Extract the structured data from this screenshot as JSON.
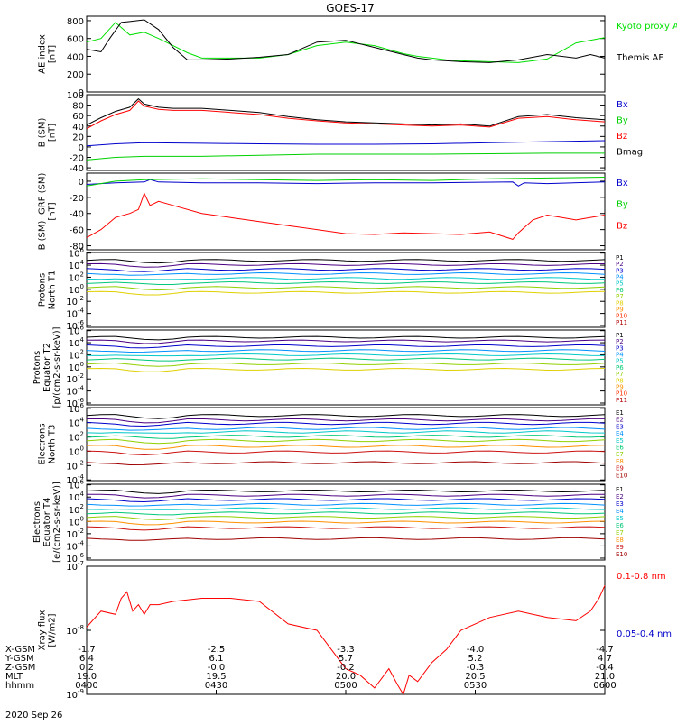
{
  "title": "GOES-17",
  "date": "2020 Sep 26",
  "chart_data": [
    {
      "type": "line",
      "panel": "ae",
      "ylabel": [
        "AE index",
        "[nT]"
      ],
      "yscale": "linear",
      "ylim": [
        0,
        850
      ],
      "yticks": [
        "0",
        "200",
        "400",
        "600",
        "800"
      ],
      "series": [
        {
          "name": "Kyoto proxy AE",
          "color": "#00e000",
          "x": [
            0,
            5,
            10,
            15,
            20,
            25,
            30,
            35,
            40,
            50,
            60,
            70,
            80,
            90,
            100,
            110,
            115,
            120,
            125,
            130,
            140,
            150,
            160,
            170,
            180
          ],
          "y": [
            560,
            600,
            780,
            640,
            670,
            600,
            520,
            440,
            380,
            380,
            380,
            420,
            520,
            560,
            520,
            430,
            400,
            380,
            360,
            350,
            340,
            330,
            370,
            550,
            610
          ]
        },
        {
          "name": "Themis AE",
          "color": "#000000",
          "x": [
            0,
            5,
            8,
            12,
            15,
            20,
            25,
            30,
            35,
            40,
            50,
            60,
            70,
            80,
            90,
            100,
            110,
            115,
            120,
            125,
            130,
            140,
            150,
            160,
            170,
            175,
            180
          ],
          "y": [
            480,
            450,
            600,
            780,
            790,
            810,
            700,
            500,
            360,
            360,
            370,
            390,
            420,
            560,
            580,
            500,
            420,
            380,
            360,
            350,
            340,
            330,
            360,
            420,
            380,
            420,
            380
          ]
        }
      ]
    },
    {
      "type": "line",
      "panel": "b",
      "ylabel": [
        "B (SM)",
        "[nT]"
      ],
      "yscale": "linear",
      "ylim": [
        -45,
        100
      ],
      "yticks": [
        "-40",
        "-20",
        "0",
        "20",
        "40",
        "60",
        "80",
        "100"
      ],
      "series": [
        {
          "name": "Bx",
          "color": "#0000cc",
          "x": [
            0,
            10,
            20,
            40,
            60,
            80,
            100,
            120,
            140,
            160,
            180
          ],
          "y": [
            2,
            6,
            8,
            7,
            6,
            5,
            5,
            6,
            8,
            10,
            12
          ]
        },
        {
          "name": "By",
          "color": "#00d000",
          "x": [
            0,
            10,
            20,
            40,
            60,
            80,
            100,
            120,
            140,
            160,
            180
          ],
          "y": [
            -25,
            -20,
            -18,
            -18,
            -16,
            -14,
            -14,
            -14,
            -13,
            -12,
            -12
          ]
        },
        {
          "name": "Bz",
          "color": "#ff0000",
          "x": [
            0,
            5,
            10,
            15,
            18,
            20,
            25,
            30,
            40,
            50,
            60,
            70,
            80,
            90,
            100,
            110,
            120,
            130,
            140,
            150,
            160,
            170,
            180
          ],
          "y": [
            35,
            50,
            62,
            70,
            88,
            78,
            72,
            70,
            70,
            66,
            62,
            55,
            50,
            46,
            44,
            42,
            40,
            42,
            38,
            55,
            58,
            52,
            48
          ]
        },
        {
          "name": "Bmag",
          "color": "#000000",
          "x": [
            0,
            5,
            10,
            15,
            18,
            20,
            25,
            30,
            40,
            50,
            60,
            70,
            80,
            90,
            100,
            110,
            120,
            130,
            140,
            150,
            160,
            170,
            180
          ],
          "y": [
            42,
            56,
            68,
            76,
            92,
            82,
            76,
            74,
            74,
            70,
            66,
            58,
            52,
            48,
            46,
            44,
            42,
            44,
            40,
            58,
            62,
            56,
            52
          ]
        }
      ]
    },
    {
      "type": "line",
      "panel": "bigrf",
      "ylabel": [
        "B (SM)-IGRF (SM)",
        "[nT]"
      ],
      "yscale": "linear",
      "ylim": [
        -85,
        10
      ],
      "yticks": [
        "-80",
        "-60",
        "-40",
        "-20",
        "0"
      ],
      "series": [
        {
          "name": "Bx",
          "color": "#0000cc",
          "x": [
            0,
            10,
            20,
            22,
            25,
            40,
            60,
            80,
            100,
            120,
            148,
            150,
            152,
            160,
            180
          ],
          "y": [
            -4,
            -2,
            -1,
            2,
            -1,
            -2,
            -2,
            -3,
            -2,
            -2,
            -1,
            -6,
            -2,
            -3,
            -1
          ]
        },
        {
          "name": "By",
          "color": "#00d000",
          "x": [
            0,
            10,
            20,
            40,
            60,
            80,
            100,
            120,
            140,
            160,
            180
          ],
          "y": [
            -6,
            0,
            2,
            3,
            2,
            1,
            2,
            1,
            3,
            4,
            5
          ]
        },
        {
          "name": "Bz",
          "color": "#ff0000",
          "x": [
            0,
            5,
            10,
            15,
            18,
            20,
            22,
            25,
            30,
            40,
            50,
            60,
            70,
            80,
            90,
            100,
            110,
            120,
            130,
            140,
            148,
            150,
            155,
            160,
            170,
            180
          ],
          "y": [
            -70,
            -60,
            -45,
            -40,
            -35,
            -15,
            -30,
            -25,
            -30,
            -40,
            -45,
            -50,
            -55,
            -60,
            -65,
            -66,
            -64,
            -65,
            -66,
            -63,
            -72,
            -64,
            -48,
            -42,
            -48,
            -42
          ]
        }
      ]
    },
    {
      "type": "line",
      "panel": "pnorth",
      "ylabel": [
        "Protons",
        "North T1"
      ],
      "yscale": "log",
      "ylim": [
        -6.3,
        6.1
      ],
      "yticks": [
        "10-6",
        "10-4",
        "10-2",
        "100",
        "102",
        "104",
        "106"
      ],
      "labels": [
        "P1",
        "P2",
        "P3",
        "P4",
        "P5",
        "P6",
        "P7",
        "P8",
        "P9",
        "P10",
        "P11"
      ],
      "colors": [
        "#000000",
        "#4b0082",
        "#0000cc",
        "#0090ff",
        "#00c8c8",
        "#00c878",
        "#90d000",
        "#e0d000",
        "#ff9000",
        "#ff3000",
        "#b00000"
      ],
      "levels": [
        4.8,
        4.1,
        3.3,
        2.6,
        1.8,
        1.1,
        0.3,
        -0.5,
        -9,
        -9,
        -9
      ]
    },
    {
      "type": "line",
      "panel": "peq",
      "ylabel": [
        "Protons",
        "Equator T2",
        "[p/(cm2-s-sr-keV)]"
      ],
      "yscale": "log",
      "ylim": [
        -6.3,
        6.1
      ],
      "yticks": [
        "10-6",
        "10-4",
        "10-2",
        "100",
        "102",
        "104",
        "106"
      ],
      "labels": [
        "P1",
        "P2",
        "P3",
        "P4",
        "P5",
        "P6",
        "P7",
        "P8",
        "P9",
        "P10",
        "P11"
      ],
      "colors": [
        "#000000",
        "#4b0082",
        "#0000cc",
        "#0090ff",
        "#00c8c8",
        "#00c878",
        "#90d000",
        "#e0d000",
        "#ff9000",
        "#ff3000",
        "#b00000"
      ],
      "levels": [
        4.9,
        4.3,
        3.5,
        2.7,
        2.0,
        1.3,
        0.5,
        -0.4,
        -9,
        -9,
        -9
      ]
    },
    {
      "type": "line",
      "panel": "enorth",
      "ylabel": [
        "Electrons",
        "North T3"
      ],
      "yscale": "log",
      "ylim": [
        -4.1,
        6.1
      ],
      "yticks": [
        "10-4",
        "10-2",
        "100",
        "102",
        "104",
        "106"
      ],
      "labels": [
        "E1",
        "E2",
        "E3",
        "E4",
        "E5",
        "E6",
        "E7",
        "E8",
        "E9",
        "E10"
      ],
      "colors": [
        "#000000",
        "#4b0082",
        "#0000cc",
        "#0090ff",
        "#00c8c8",
        "#00c878",
        "#90d000",
        "#ff9000",
        "#cc1010",
        "#a00000"
      ],
      "levels": [
        5.0,
        4.4,
        3.9,
        3.2,
        2.7,
        2.1,
        1.5,
        0.7,
        -0.1,
        -1.6
      ]
    },
    {
      "type": "line",
      "panel": "eeq",
      "ylabel": [
        "Electrons",
        "Equator T4",
        "[e/(cm2-s-sr-keV)]"
      ],
      "yscale": "log",
      "ylim": [
        -6.3,
        6.1
      ],
      "yticks": [
        "10-6",
        "10-4",
        "10-2",
        "100",
        "102",
        "104",
        "106"
      ],
      "labels": [
        "E1",
        "E2",
        "E3",
        "E4",
        "E5",
        "E6",
        "E7",
        "E8",
        "E9",
        "E10"
      ],
      "colors": [
        "#000000",
        "#4b0082",
        "#0000cc",
        "#0090ff",
        "#00c8c8",
        "#00c878",
        "#90d000",
        "#ff9000",
        "#cc1010",
        "#a00000"
      ],
      "levels": [
        5.0,
        4.3,
        3.6,
        2.8,
        2.1,
        1.4,
        0.7,
        -0.1,
        -1.0,
        -2.8
      ]
    },
    {
      "type": "line",
      "panel": "xray",
      "ylabel": [
        "Xray flux",
        "[W/m2]"
      ],
      "yscale": "log",
      "ylim": [
        -9,
        -7
      ],
      "yticks": [
        "10-9",
        "10-8",
        "10-7"
      ],
      "series": [
        {
          "name": "0.1-0.8 nm",
          "color": "#ff0000",
          "x": [
            0,
            5,
            10,
            12,
            14,
            16,
            18,
            20,
            22,
            25,
            30,
            40,
            50,
            60,
            70,
            80,
            85,
            90,
            95,
            100,
            105,
            108,
            110,
            112,
            115,
            120,
            125,
            130,
            140,
            150,
            160,
            170,
            175,
            178,
            180
          ],
          "y": [
            -7.95,
            -7.7,
            -7.75,
            -7.5,
            -7.4,
            -7.7,
            -7.6,
            -7.75,
            -7.6,
            -7.6,
            -7.55,
            -7.5,
            -7.5,
            -7.55,
            -7.9,
            -8.0,
            -8.3,
            -8.6,
            -8.7,
            -8.9,
            -8.6,
            -8.85,
            -9.0,
            -8.7,
            -8.8,
            -8.5,
            -8.3,
            -8.0,
            -7.8,
            -7.7,
            -7.8,
            -7.85,
            -7.7,
            -7.5,
            -7.3
          ]
        },
        {
          "name": "0.05-0.4 nm",
          "color": "#0000cc",
          "x": [],
          "y": []
        }
      ]
    }
  ],
  "xaxis": {
    "row_labels": [
      "X-GSM",
      "Y-GSM",
      "Z-GSM",
      "MLT",
      "hhmm"
    ],
    "columns": [
      {
        "x": 0,
        "values": [
          "-1.7",
          "6.4",
          "0.2",
          "19.0",
          "0400"
        ]
      },
      {
        "x": 45,
        "values": [
          "-2.5",
          "6.1",
          "-0.0",
          "19.5",
          "0430"
        ]
      },
      {
        "x": 90,
        "values": [
          "-3.3",
          "5.7",
          "-0.2",
          "20.0",
          "0500"
        ]
      },
      {
        "x": 135,
        "values": [
          "-4.0",
          "5.2",
          "-0.3",
          "20.5",
          "0530"
        ]
      },
      {
        "x": 180,
        "values": [
          "-4.7",
          "4.7",
          "-0.4",
          "21.0",
          "0600"
        ]
      }
    ]
  }
}
